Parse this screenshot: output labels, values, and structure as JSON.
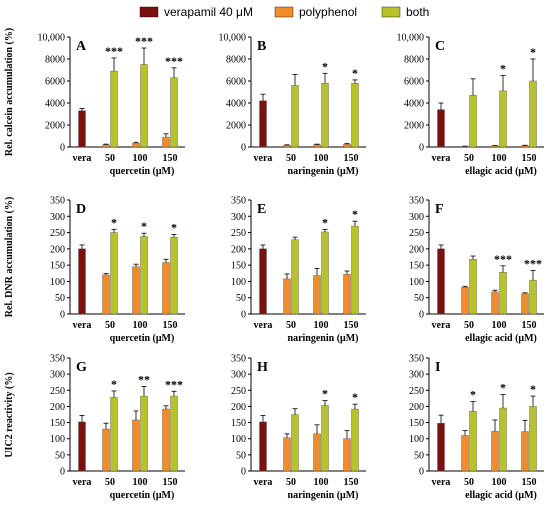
{
  "legend": [
    {
      "name": "verapamil 40 μM",
      "color": "#7b1010"
    },
    {
      "name": "polyphenol",
      "color": "#f28c28"
    },
    {
      "name": "both",
      "color": "#b8c22a"
    }
  ],
  "row_labels": [
    "Rel. calcein accumulation (%)",
    "Rel. DNR accumulation (%)",
    "UIC2 reactivity (%)"
  ],
  "chart_data": [
    {
      "type": "bar",
      "panel": "A",
      "row": 0,
      "col": 0,
      "xlabel": "quercetin (μM)",
      "categories": [
        "vera",
        "50",
        "100",
        "150"
      ],
      "ylim": [
        0,
        10000
      ],
      "yticks": [
        "0",
        "2000",
        "4000",
        "6000",
        "8000",
        "10,000"
      ],
      "series": [
        {
          "name": "verapamil 40 μM",
          "values": [
            3300,
            null,
            null,
            null
          ],
          "errors": [
            200,
            null,
            null,
            null
          ]
        },
        {
          "name": "polyphenol",
          "values": [
            null,
            200,
            350,
            900
          ],
          "errors": [
            null,
            60,
            80,
            300
          ]
        },
        {
          "name": "both",
          "values": [
            null,
            6900,
            7500,
            6300
          ],
          "errors": [
            null,
            1200,
            1500,
            900
          ]
        }
      ],
      "annotations": [
        "",
        "***",
        "***",
        "***"
      ]
    },
    {
      "type": "bar",
      "panel": "B",
      "row": 0,
      "col": 1,
      "xlabel": "naringenin (μM)",
      "categories": [
        "vera",
        "50",
        "100",
        "150"
      ],
      "ylim": [
        0,
        10000
      ],
      "yticks": [
        "0",
        "2000",
        "4000",
        "6000",
        "8000",
        "10,000"
      ],
      "series": [
        {
          "name": "verapamil 40 μM",
          "values": [
            4200,
            null,
            null,
            null
          ],
          "errors": [
            600,
            null,
            null,
            null
          ]
        },
        {
          "name": "polyphenol",
          "values": [
            null,
            150,
            200,
            250
          ],
          "errors": [
            null,
            50,
            60,
            60
          ]
        },
        {
          "name": "both",
          "values": [
            null,
            5600,
            5800,
            5800
          ],
          "errors": [
            null,
            1000,
            900,
            300
          ]
        }
      ],
      "annotations": [
        "",
        "",
        "*",
        "*"
      ]
    },
    {
      "type": "bar",
      "panel": "C",
      "row": 0,
      "col": 2,
      "xlabel": "ellagic acid (μM)",
      "categories": [
        "vera",
        "50",
        "100",
        "150"
      ],
      "ylim": [
        0,
        10000
      ],
      "yticks": [
        "0",
        "2000",
        "4000",
        "6000",
        "8000",
        "10,000"
      ],
      "series": [
        {
          "name": "verapamil 40 μM",
          "values": [
            3400,
            null,
            null,
            null
          ],
          "errors": [
            600,
            null,
            null,
            null
          ]
        },
        {
          "name": "polyphenol",
          "values": [
            null,
            50,
            100,
            120
          ],
          "errors": [
            null,
            30,
            30,
            40
          ]
        },
        {
          "name": "both",
          "values": [
            null,
            4700,
            5100,
            6000
          ],
          "errors": [
            null,
            1500,
            1400,
            2000
          ]
        }
      ],
      "annotations": [
        "",
        "",
        "*",
        "*"
      ]
    },
    {
      "type": "bar",
      "panel": "D",
      "row": 1,
      "col": 0,
      "xlabel": "quercetin (μM)",
      "categories": [
        "vera",
        "50",
        "100",
        "150"
      ],
      "ylim": [
        0,
        350
      ],
      "yticks": [
        "0",
        "50",
        "100",
        "150",
        "200",
        "250",
        "300",
        "350"
      ],
      "series": [
        {
          "name": "verapamil 40 μM",
          "values": [
            200,
            null,
            null,
            null
          ],
          "errors": [
            12,
            null,
            null,
            null
          ]
        },
        {
          "name": "polyphenol",
          "values": [
            null,
            120,
            145,
            158
          ],
          "errors": [
            null,
            4,
            8,
            10
          ]
        },
        {
          "name": "both",
          "values": [
            null,
            250,
            238,
            236
          ],
          "errors": [
            null,
            10,
            10,
            8
          ]
        }
      ],
      "annotations": [
        "",
        "*",
        "*",
        "*"
      ]
    },
    {
      "type": "bar",
      "panel": "E",
      "row": 1,
      "col": 1,
      "xlabel": "naringenin (μM)",
      "categories": [
        "vera",
        "50",
        "100",
        "150"
      ],
      "ylim": [
        0,
        350
      ],
      "yticks": [
        "0",
        "50",
        "100",
        "150",
        "200",
        "250",
        "300",
        "350"
      ],
      "series": [
        {
          "name": "verapamil 40 μM",
          "values": [
            200,
            null,
            null,
            null
          ],
          "errors": [
            12,
            null,
            null,
            null
          ]
        },
        {
          "name": "polyphenol",
          "values": [
            null,
            108,
            118,
            122
          ],
          "errors": [
            null,
            15,
            22,
            10
          ]
        },
        {
          "name": "both",
          "values": [
            null,
            228,
            252,
            270
          ],
          "errors": [
            null,
            8,
            8,
            15
          ]
        }
      ],
      "annotations": [
        "",
        "",
        "*",
        "*"
      ]
    },
    {
      "type": "bar",
      "panel": "F",
      "row": 1,
      "col": 2,
      "xlabel": "ellagic acid (μM)",
      "categories": [
        "vera",
        "50",
        "100",
        "150"
      ],
      "ylim": [
        0,
        350
      ],
      "yticks": [
        "0",
        "50",
        "100",
        "150",
        "200",
        "250",
        "300",
        "350"
      ],
      "series": [
        {
          "name": "verapamil 40 μM",
          "values": [
            200,
            null,
            null,
            null
          ],
          "errors": [
            12,
            null,
            null,
            null
          ]
        },
        {
          "name": "polyphenol",
          "values": [
            null,
            82,
            68,
            62
          ],
          "errors": [
            null,
            3,
            5,
            3
          ]
        },
        {
          "name": "both",
          "values": [
            null,
            168,
            128,
            104
          ],
          "errors": [
            null,
            10,
            20,
            30
          ]
        }
      ],
      "annotations": [
        "",
        "",
        "***",
        "***"
      ]
    },
    {
      "type": "bar",
      "panel": "G",
      "row": 2,
      "col": 0,
      "xlabel": "quercetin (μM)",
      "categories": [
        "vera",
        "50",
        "100",
        "150"
      ],
      "ylim": [
        0,
        350
      ],
      "yticks": [
        "0",
        "50",
        "100",
        "150",
        "200",
        "250",
        "300",
        "350"
      ],
      "series": [
        {
          "name": "verapamil 40 μM",
          "values": [
            152,
            null,
            null,
            null
          ],
          "errors": [
            20,
            null,
            null,
            null
          ]
        },
        {
          "name": "polyphenol",
          "values": [
            null,
            130,
            158,
            192
          ],
          "errors": [
            null,
            18,
            28,
            10
          ]
        },
        {
          "name": "both",
          "values": [
            null,
            228,
            232,
            232
          ],
          "errors": [
            null,
            20,
            30,
            15
          ]
        }
      ],
      "annotations": [
        "",
        "*",
        "**",
        "***"
      ]
    },
    {
      "type": "bar",
      "panel": "H",
      "row": 2,
      "col": 1,
      "xlabel": "naringenin (μM)",
      "categories": [
        "vera",
        "50",
        "100",
        "150"
      ],
      "ylim": [
        0,
        350
      ],
      "yticks": [
        "0",
        "50",
        "100",
        "150",
        "200",
        "250",
        "300",
        "350"
      ],
      "series": [
        {
          "name": "verapamil 40 μM",
          "values": [
            152,
            null,
            null,
            null
          ],
          "errors": [
            20,
            null,
            null,
            null
          ]
        },
        {
          "name": "polyphenol",
          "values": [
            null,
            103,
            115,
            100
          ],
          "errors": [
            null,
            12,
            28,
            25
          ]
        },
        {
          "name": "both",
          "values": [
            null,
            175,
            203,
            192
          ],
          "errors": [
            null,
            18,
            15,
            15
          ]
        }
      ],
      "annotations": [
        "",
        "",
        "*",
        "*"
      ]
    },
    {
      "type": "bar",
      "panel": "I",
      "row": 2,
      "col": 2,
      "xlabel": "ellagic acid (μM)",
      "categories": [
        "vera",
        "50",
        "100",
        "150"
      ],
      "ylim": [
        0,
        350
      ],
      "yticks": [
        "0",
        "50",
        "100",
        "150",
        "200",
        "250",
        "300",
        "350"
      ],
      "series": [
        {
          "name": "verapamil 40 μM",
          "values": [
            148,
            null,
            null,
            null
          ],
          "errors": [
            25,
            null,
            null,
            null
          ]
        },
        {
          "name": "polyphenol",
          "values": [
            null,
            110,
            123,
            122
          ],
          "errors": [
            null,
            15,
            35,
            35
          ]
        },
        {
          "name": "both",
          "values": [
            null,
            185,
            195,
            200
          ],
          "errors": [
            null,
            30,
            42,
            32
          ]
        }
      ],
      "annotations": [
        "",
        "*",
        "*",
        "*"
      ]
    }
  ]
}
